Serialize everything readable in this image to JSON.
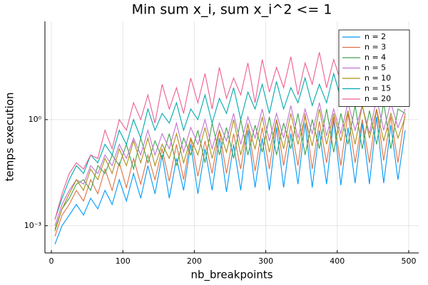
{
  "chart_data": {
    "type": "line",
    "title": "Min sum x_i, sum x_i^2 <= 1",
    "xlabel": "nb_breakpoints",
    "ylabel": "temps execution",
    "log_y": true,
    "grid": true,
    "legend": "top-right",
    "xlim": [
      -9,
      514
    ],
    "xticks": [
      0,
      100,
      200,
      300,
      400,
      500
    ],
    "ylim": [
      0.00017,
      600
    ],
    "yticks": [
      {
        "value": 0.001,
        "label": "10⁻³"
      },
      {
        "value": 1,
        "label": "10⁰"
      }
    ],
    "x": [
      5,
      15,
      25,
      35,
      45,
      55,
      65,
      75,
      85,
      95,
      105,
      115,
      125,
      135,
      145,
      155,
      165,
      175,
      185,
      195,
      205,
      215,
      225,
      235,
      245,
      255,
      265,
      275,
      285,
      295,
      305,
      315,
      325,
      335,
      345,
      355,
      365,
      375,
      385,
      395,
      405,
      415,
      425,
      435,
      445,
      455,
      465,
      475,
      485,
      495
    ],
    "series": [
      {
        "name": "n = 2",
        "color": "#009af9",
        "values": [
          0.0003,
          0.001,
          0.002,
          0.004,
          0.002,
          0.006,
          0.003,
          0.01,
          0.004,
          0.02,
          0.005,
          0.03,
          0.006,
          0.05,
          0.008,
          0.1,
          0.006,
          0.08,
          0.01,
          0.2,
          0.008,
          0.15,
          0.01,
          0.3,
          0.009,
          0.2,
          0.01,
          0.5,
          0.012,
          0.3,
          0.01,
          0.6,
          0.012,
          0.4,
          0.015,
          0.8,
          0.012,
          0.5,
          0.015,
          1.0,
          0.014,
          0.6,
          0.016,
          0.8,
          0.015,
          1.2,
          0.016,
          0.7,
          0.02,
          0.5
        ]
      },
      {
        "name": "n = 3",
        "color": "#e26f46",
        "values": [
          0.0005,
          0.002,
          0.004,
          0.01,
          0.005,
          0.02,
          0.008,
          0.04,
          0.01,
          0.06,
          0.012,
          0.08,
          0.015,
          0.1,
          0.02,
          0.15,
          0.018,
          0.2,
          0.02,
          0.3,
          0.025,
          0.25,
          0.03,
          0.5,
          0.03,
          0.4,
          0.04,
          0.8,
          0.035,
          0.6,
          0.04,
          1.0,
          0.05,
          0.7,
          0.05,
          1.5,
          0.04,
          0.9,
          0.06,
          1.2,
          0.05,
          1.5,
          0.06,
          1.0,
          0.06,
          2.0,
          0.07,
          1.2,
          0.06,
          1.5
        ]
      },
      {
        "name": "n = 4",
        "color": "#3da44d",
        "values": [
          0.0007,
          0.003,
          0.006,
          0.015,
          0.02,
          0.01,
          0.05,
          0.03,
          0.1,
          0.05,
          0.2,
          0.04,
          0.3,
          0.06,
          0.25,
          0.08,
          0.4,
          0.05,
          0.3,
          0.1,
          0.5,
          0.06,
          0.8,
          0.1,
          0.6,
          0.08,
          1.0,
          0.1,
          0.7,
          0.12,
          1.2,
          0.1,
          0.8,
          0.15,
          1.5,
          0.1,
          1.0,
          0.15,
          2.0,
          0.12,
          1.5,
          0.2,
          2.5,
          0.15,
          1.8,
          0.2,
          3.0,
          0.15,
          2.0,
          1.5
        ]
      },
      {
        "name": "n = 5",
        "color": "#c271d2",
        "values": [
          0.001,
          0.004,
          0.01,
          0.02,
          0.015,
          0.05,
          0.03,
          0.1,
          0.05,
          0.2,
          0.08,
          0.3,
          0.1,
          0.5,
          0.1,
          0.4,
          0.15,
          0.8,
          0.12,
          0.6,
          0.2,
          1.0,
          0.15,
          0.8,
          0.25,
          1.5,
          0.2,
          1.2,
          0.3,
          2.0,
          0.25,
          1.5,
          0.3,
          2.5,
          0.3,
          2.0,
          0.4,
          3.0,
          0.35,
          2.0,
          0.4,
          3.0,
          0.5,
          2.5,
          0.4,
          4.0,
          0.5,
          3.0,
          0.6,
          2.0
        ]
      },
      {
        "name": "n = 10",
        "color": "#ac8e18",
        "values": [
          0.0008,
          0.003,
          0.008,
          0.02,
          0.01,
          0.04,
          0.02,
          0.08,
          0.03,
          0.15,
          0.05,
          0.25,
          0.06,
          0.3,
          0.05,
          0.2,
          0.08,
          0.4,
          0.06,
          0.3,
          0.1,
          0.6,
          0.08,
          0.5,
          0.12,
          1.0,
          0.1,
          0.7,
          0.15,
          1.2,
          0.12,
          1.0,
          0.15,
          1.5,
          0.2,
          1.2,
          0.18,
          2.0,
          0.2,
          1.5,
          0.25,
          1.8,
          0.2,
          2.5,
          0.3,
          2.0,
          0.25,
          1.5,
          0.3,
          1.2
        ]
      },
      {
        "name": "n = 15",
        "color": "#00a9ad",
        "values": [
          0.0015,
          0.006,
          0.02,
          0.05,
          0.03,
          0.1,
          0.06,
          0.2,
          0.1,
          0.5,
          0.2,
          1.0,
          0.3,
          2.0,
          0.5,
          1.5,
          0.8,
          3.0,
          0.5,
          2.0,
          1.0,
          5.0,
          0.8,
          4.0,
          1.5,
          8.0,
          1.0,
          6.0,
          2.0,
          10.0,
          1.5,
          12.0,
          2.0,
          8.0,
          3.0,
          15.0,
          2.5,
          10.0,
          3.0,
          20.0,
          4.0,
          15.0,
          3.0,
          25.0,
          5.0,
          20.0,
          4.0,
          30.0,
          5.0,
          10.0
        ]
      },
      {
        "name": "n = 20",
        "color": "#ed5e93",
        "values": [
          0.0015,
          0.008,
          0.03,
          0.06,
          0.04,
          0.1,
          0.08,
          0.5,
          0.15,
          1.0,
          0.5,
          3.0,
          1.0,
          5.0,
          0.8,
          10.0,
          2.0,
          8.0,
          1.5,
          15.0,
          3.0,
          20.0,
          2.0,
          30.0,
          4.0,
          15.0,
          5.0,
          40.0,
          3.0,
          50.0,
          6.0,
          30.0,
          8.0,
          60.0,
          5.0,
          40.0,
          10.0,
          80.0,
          8.0,
          50.0,
          12.0,
          100.0,
          10.0,
          150.0,
          8.0,
          80.0,
          15.0,
          120.0,
          10.0,
          200.0
        ]
      }
    ]
  }
}
